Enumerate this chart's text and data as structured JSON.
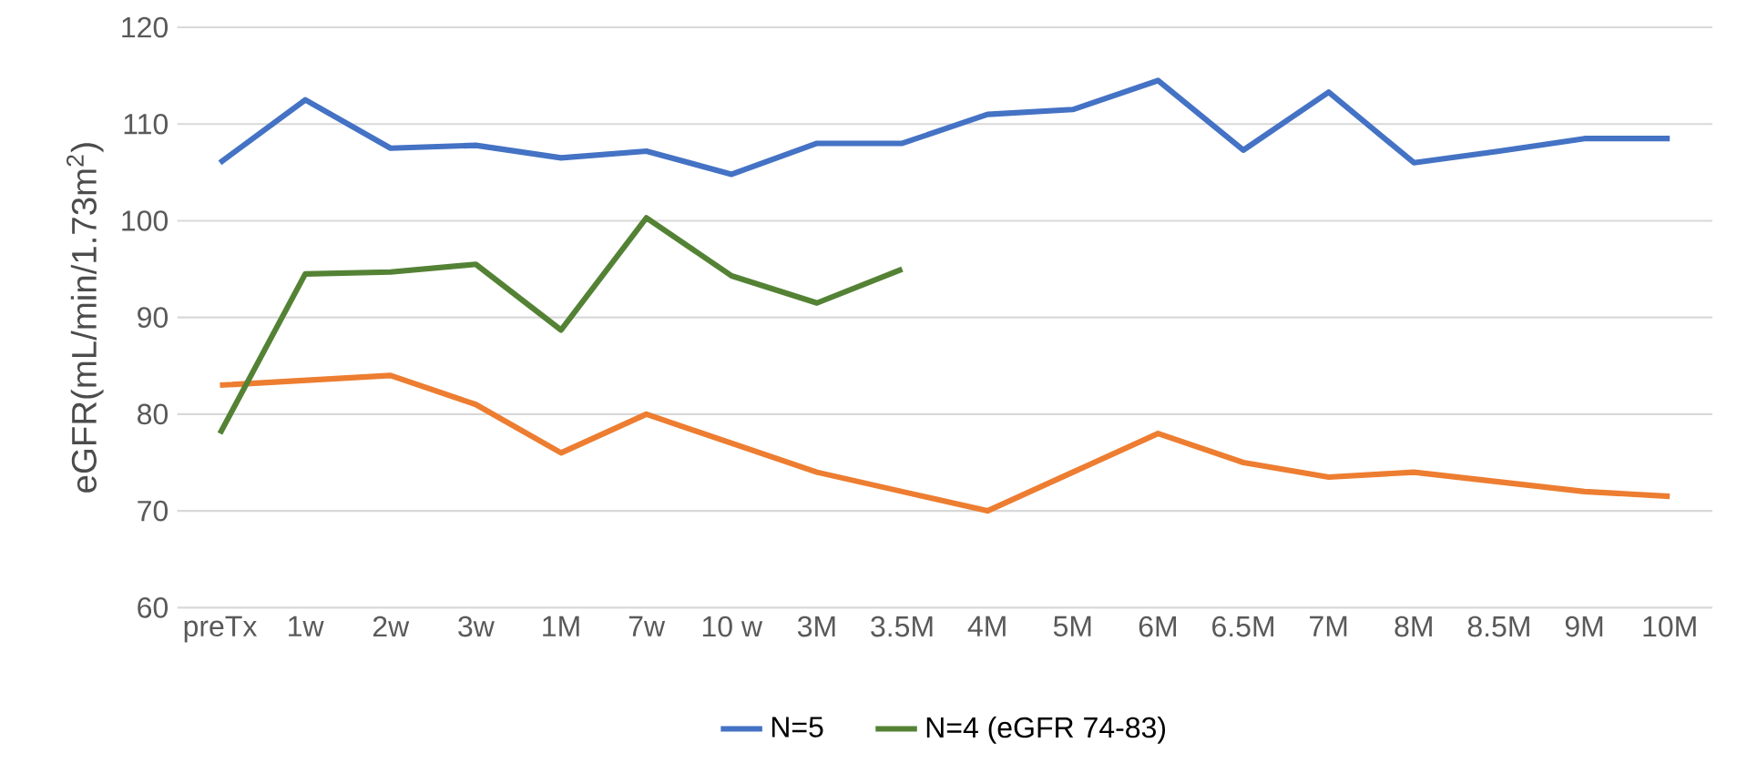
{
  "chart_data": {
    "type": "line",
    "ylabel": "eGFR(mL/min/1.73m$^{2}$)",
    "categories": [
      "preTx",
      "1w",
      "2w",
      "3w",
      "1M",
      "7w",
      "10 w",
      "3M",
      "3.5M",
      "4M",
      "5M",
      "6M",
      "6.5M",
      "7M",
      "8M",
      "8.5M",
      "9M",
      "10M"
    ],
    "series": [
      {
        "name": "N=5",
        "color": "#4472c4",
        "values": [
          106,
          112.5,
          107.5,
          107.8,
          106.5,
          107.2,
          104.8,
          108,
          108,
          111,
          111.5,
          114.5,
          107.3,
          113.3,
          106,
          107.2,
          108.5,
          108.5
        ]
      },
      {
        "color": "#ed7d31",
        "values": [
          83,
          83.5,
          84,
          81,
          76,
          80,
          77,
          74,
          72,
          70,
          74,
          78,
          75,
          73.5,
          74,
          73,
          72,
          71.5
        ]
      },
      {
        "name": "N=4 (eGFR 74-83)",
        "color": "#548235",
        "values": [
          78,
          94.5,
          94.7,
          95.5,
          88.7,
          100.3,
          94.3,
          91.5,
          95,
          null,
          null,
          null,
          null,
          null,
          null,
          null,
          null,
          null
        ]
      }
    ],
    "ylim": [
      60,
      120
    ],
    "yticks": [
      60,
      70,
      80,
      90,
      100,
      110,
      120
    ],
    "grid": "y",
    "legend": "bottom",
    "marker": "none",
    "line_style": "solid"
  }
}
